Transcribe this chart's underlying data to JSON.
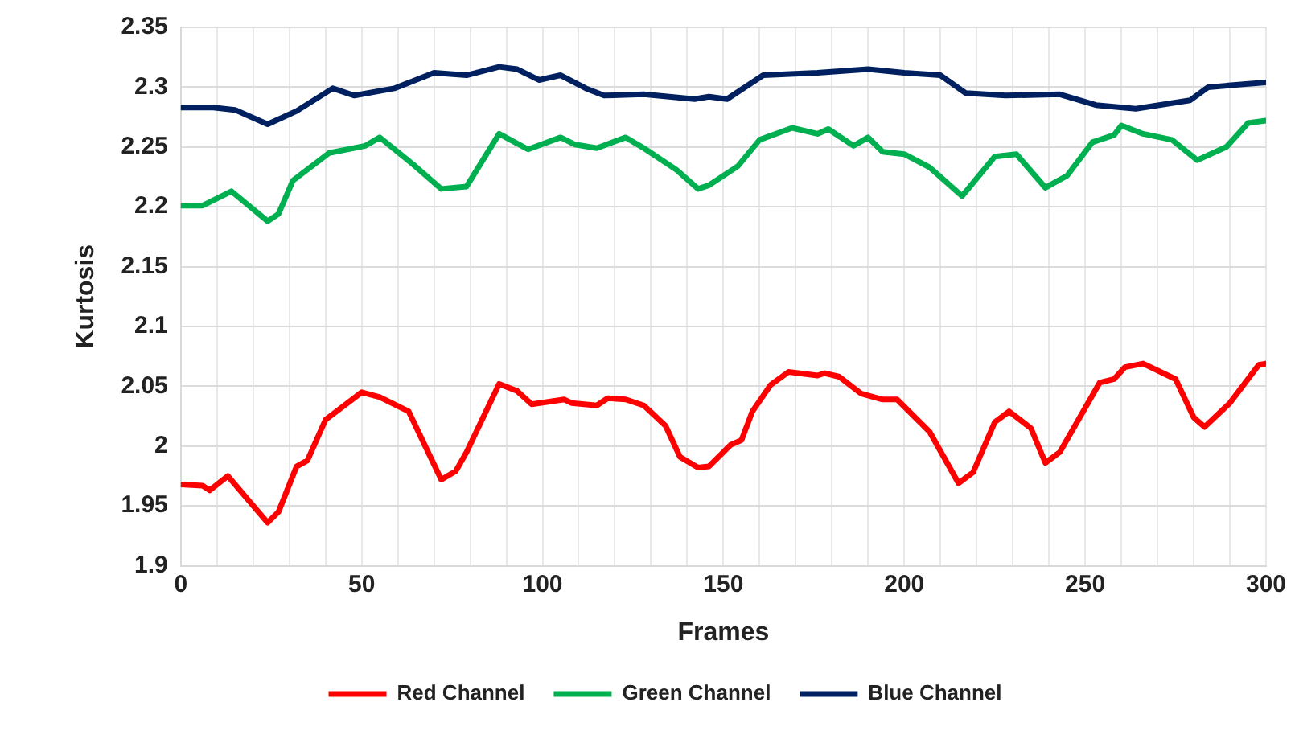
{
  "chart_data": {
    "type": "line",
    "xlabel": "Frames",
    "ylabel": "Kurtosis",
    "xlim": [
      0,
      300
    ],
    "xticks": [
      0,
      {
        "value": 10,
        "label": null
      },
      {
        "value": 20,
        "label": null
      },
      {
        "value": 30,
        "label": null
      },
      {
        "value": 40,
        "label": null
      },
      50,
      {
        "value": 60,
        "label": null
      },
      {
        "value": 70,
        "label": null
      },
      {
        "value": 80,
        "label": null
      },
      {
        "value": 90,
        "label": null
      },
      100,
      {
        "value": 110,
        "label": null
      },
      {
        "value": 120,
        "label": null
      },
      {
        "value": 130,
        "label": null
      },
      {
        "value": 140,
        "label": null
      },
      150,
      {
        "value": 160,
        "label": null
      },
      {
        "value": 170,
        "label": null
      },
      {
        "value": 180,
        "label": null
      },
      {
        "value": 190,
        "label": null
      },
      200,
      {
        "value": 210,
        "label": null
      },
      {
        "value": 220,
        "label": null
      },
      {
        "value": 230,
        "label": null
      },
      {
        "value": 240,
        "label": null
      },
      250,
      {
        "value": 260,
        "label": null
      },
      {
        "value": 270,
        "label": null
      },
      {
        "value": 280,
        "label": null
      },
      {
        "value": 290,
        "label": null
      },
      300
    ],
    "ylim": [
      1.9,
      2.35
    ],
    "yticks": [
      1.9,
      1.95,
      2,
      2.05,
      2.1,
      2.15,
      2.2,
      2.25,
      2.3,
      2.35
    ],
    "grid": true,
    "legend": "bottom",
    "marker": "none",
    "line_style": "solid",
    "series": [
      {
        "name": "Red Channel",
        "color": "#ff0000",
        "x": [
          0,
          6,
          8,
          13,
          24,
          27,
          32,
          35,
          40,
          50,
          55,
          63,
          66,
          72,
          76,
          79,
          88,
          93,
          97,
          106,
          108,
          115,
          118,
          123,
          128,
          134,
          138,
          143,
          146,
          152,
          155,
          158,
          163,
          168,
          176,
          178,
          182,
          188,
          194,
          198,
          207,
          215,
          219,
          225,
          229,
          235,
          239,
          243,
          254,
          258,
          261,
          266,
          275,
          280,
          283,
          290,
          298,
          300
        ],
        "values": [
          1.968,
          1.967,
          1.963,
          1.975,
          1.936,
          1.945,
          1.983,
          1.988,
          2.022,
          2.045,
          2.041,
          2.029,
          2.01,
          1.972,
          1.979,
          1.995,
          2.052,
          2.046,
          2.035,
          2.039,
          2.036,
          2.034,
          2.04,
          2.039,
          2.034,
          2.017,
          1.991,
          1.982,
          1.983,
          2.001,
          2.005,
          2.029,
          2.051,
          2.062,
          2.059,
          2.061,
          2.058,
          2.044,
          2.039,
          2.039,
          2.012,
          1.969,
          1.978,
          2.02,
          2.029,
          2.015,
          1.986,
          1.995,
          2.053,
          2.056,
          2.066,
          2.069,
          2.056,
          2.024,
          2.016,
          2.036,
          2.068,
          2.069
        ]
      },
      {
        "name": "Green Channel",
        "color": "#00b050",
        "x": [
          0,
          6,
          14,
          24,
          27,
          31,
          41,
          51,
          55,
          64,
          72,
          79,
          88,
          96,
          105,
          109,
          115,
          123,
          128,
          137,
          143,
          146,
          154,
          160,
          169,
          176,
          179,
          186,
          190,
          194,
          200,
          207,
          216,
          225,
          231,
          239,
          245,
          252,
          258,
          260,
          266,
          274,
          281,
          289,
          295,
          300
        ],
        "values": [
          2.201,
          2.201,
          2.213,
          2.188,
          2.194,
          2.222,
          2.245,
          2.251,
          2.258,
          2.236,
          2.215,
          2.217,
          2.261,
          2.248,
          2.258,
          2.252,
          2.249,
          2.258,
          2.249,
          2.231,
          2.215,
          2.218,
          2.234,
          2.256,
          2.266,
          2.261,
          2.265,
          2.251,
          2.258,
          2.246,
          2.244,
          2.233,
          2.209,
          2.242,
          2.244,
          2.216,
          2.226,
          2.254,
          2.26,
          2.268,
          2.261,
          2.256,
          2.239,
          2.25,
          2.27,
          2.272
        ]
      },
      {
        "name": "Blue Channel",
        "color": "#002060",
        "x": [
          0,
          9,
          15,
          24,
          32,
          42,
          48,
          59,
          70,
          79,
          88,
          93,
          99,
          105,
          112,
          117,
          128,
          142,
          146,
          151,
          161,
          176,
          190,
          200,
          210,
          217,
          228,
          243,
          253,
          264,
          279,
          284,
          300
        ],
        "values": [
          2.283,
          2.283,
          2.281,
          2.269,
          2.28,
          2.299,
          2.293,
          2.299,
          2.312,
          2.31,
          2.317,
          2.315,
          2.306,
          2.31,
          2.299,
          2.293,
          2.294,
          2.29,
          2.292,
          2.29,
          2.31,
          2.312,
          2.315,
          2.312,
          2.31,
          2.295,
          2.293,
          2.294,
          2.285,
          2.282,
          2.289,
          2.3,
          2.304
        ]
      }
    ]
  }
}
